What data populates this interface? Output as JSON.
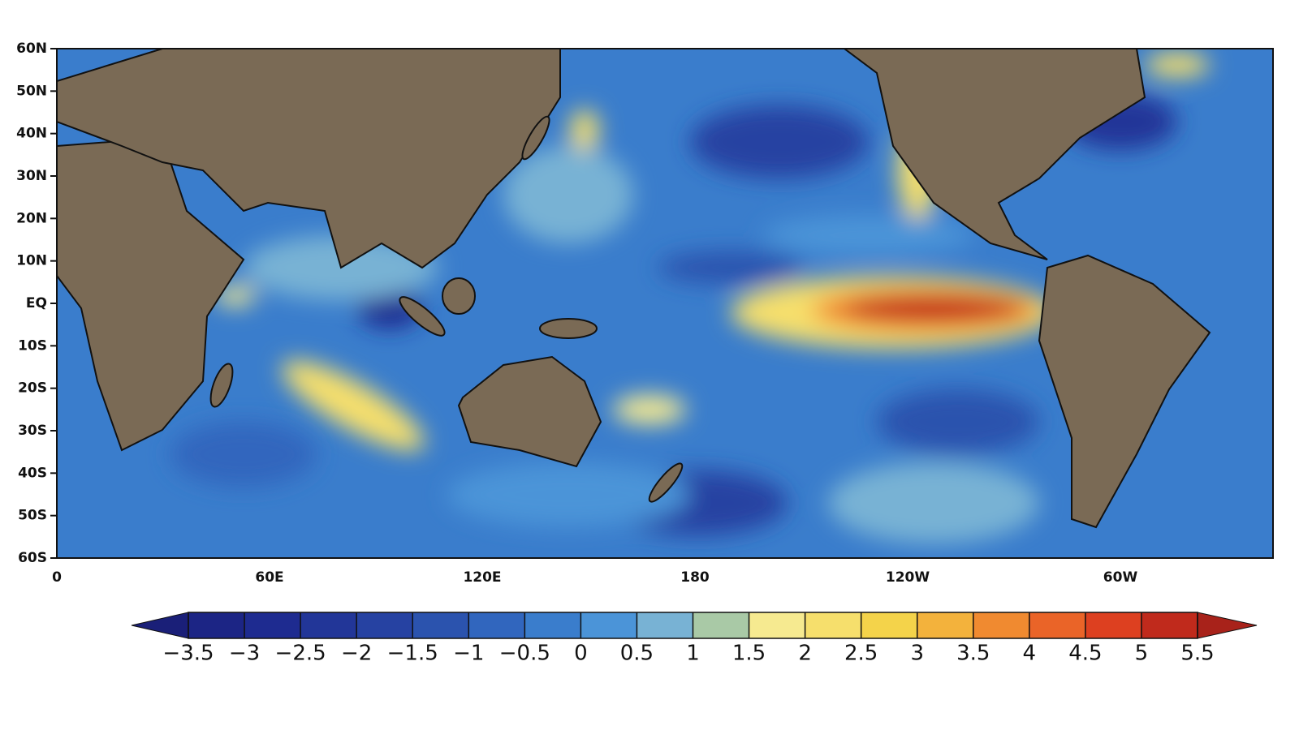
{
  "map": {
    "lat_labels": [
      "60N",
      "50N",
      "40N",
      "30N",
      "20N",
      "10N",
      "EQ",
      "10S",
      "20S",
      "30S",
      "40S",
      "50S",
      "60S"
    ],
    "lon_labels": [
      "0",
      "60E",
      "120E",
      "180",
      "120W",
      "60W"
    ],
    "colorbar": {
      "ticks": [
        {
          "value": -3.5,
          "label": "−3.5"
        },
        {
          "value": -3,
          "label": "−3"
        },
        {
          "value": -2.5,
          "label": "−2.5"
        },
        {
          "value": -2,
          "label": "−2"
        },
        {
          "value": -1.5,
          "label": "−1.5"
        },
        {
          "value": -1,
          "label": "−1"
        },
        {
          "value": -0.5,
          "label": "−0.5"
        },
        0,
        0.5,
        1,
        1.5,
        2,
        2.5,
        3,
        3.5,
        4,
        4.5,
        5,
        5.5
      ],
      "colors": [
        "#1a1f78",
        "#1c2585",
        "#1e2b90",
        "#223698",
        "#2642a2",
        "#2b53ae",
        "#3166be",
        "#3a7dcc",
        "#4b94d8",
        "#78b2d4",
        "#a9c9a6",
        "#f6ea90",
        "#f6df6c",
        "#f4d34a",
        "#f3b23c",
        "#f08a30",
        "#ea6428",
        "#dd4020",
        "#c02a1c",
        "#a8221a"
      ]
    }
  }
}
